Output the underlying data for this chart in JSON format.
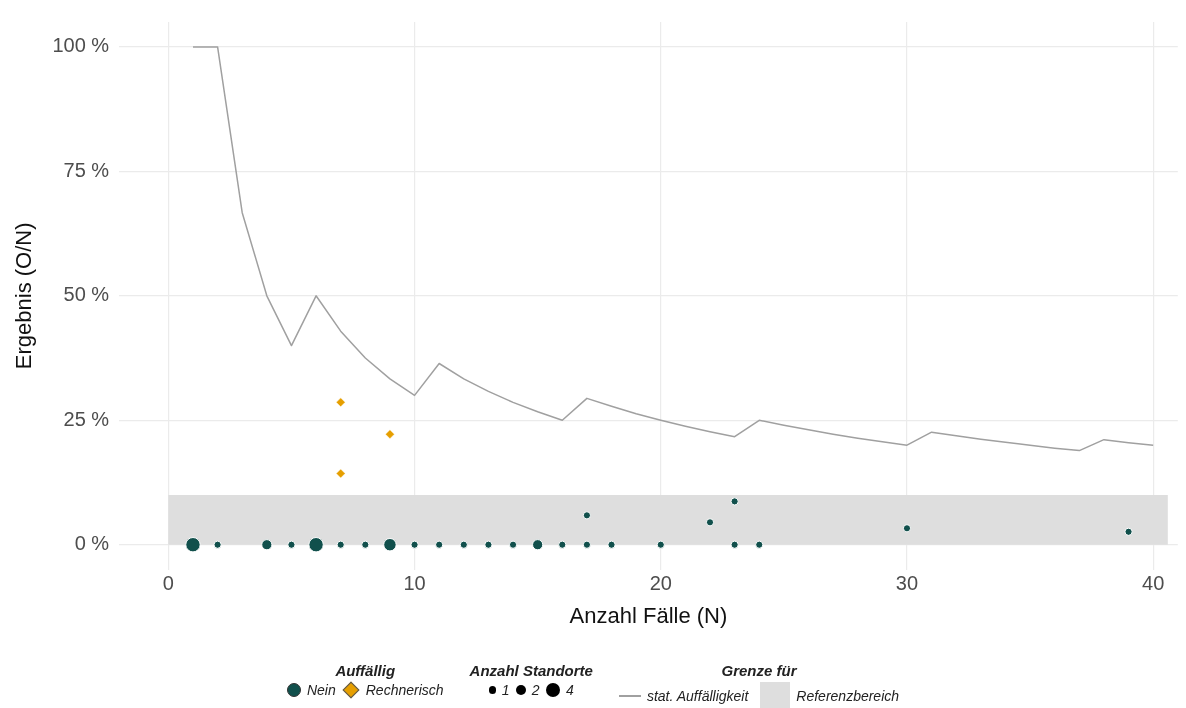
{
  "chart_data": {
    "type": "scatter",
    "xlabel": "Anzahl Fälle (N)",
    "ylabel": "Ergebnis (O/N)",
    "legend_title": "Auffällig",
    "annotations": [
      "Anzahl Standorte",
      "Grenze für"
    ],
    "xlim": [
      -2,
      41
    ],
    "xticks": [
      0,
      10,
      20,
      30,
      40
    ],
    "ylim": [
      -5,
      105
    ],
    "yticks": [
      {
        "value": 0,
        "label": "0 %"
      },
      {
        "value": 25,
        "label": "25 %"
      },
      {
        "value": 50,
        "label": "50 %"
      },
      {
        "value": 75,
        "label": "75 %"
      },
      {
        "value": 100,
        "label": "100 %"
      }
    ],
    "grid": true,
    "legend": "bottom",
    "size_legend": [
      1,
      2,
      4
    ],
    "bands": [
      {
        "axis": "y",
        "from": 0,
        "to": 10,
        "label": "Referenzbereich",
        "color": "#dedede"
      }
    ],
    "series": [
      {
        "name": "stat. Auffälligkeit",
        "type": "line",
        "color": "#a0a0a0",
        "marker": "none",
        "line_style": "solid",
        "x": [
          1,
          2,
          3,
          4,
          5,
          6,
          7,
          8,
          9,
          10,
          11,
          12,
          13,
          14,
          15,
          16,
          17,
          18,
          19,
          20,
          21,
          22,
          23,
          24,
          25,
          26,
          27,
          28,
          29,
          30,
          31,
          32,
          33,
          34,
          35,
          36,
          37,
          38,
          39,
          40
        ],
        "values": [
          100,
          100,
          66.7,
          50,
          40,
          50,
          42.9,
          37.5,
          33.3,
          30,
          36.4,
          33.3,
          30.8,
          28.6,
          26.7,
          25,
          29.4,
          27.8,
          26.3,
          25,
          23.8,
          22.7,
          21.7,
          25,
          24,
          23.1,
          22.2,
          21.4,
          20.7,
          20,
          22.6,
          21.9,
          21.2,
          20.6,
          20,
          19.4,
          18.9,
          21.1,
          20.5,
          20
        ]
      },
      {
        "name": "Nein",
        "type": "bubble",
        "color": "#11504c",
        "marker": "circle",
        "x": [
          1,
          2,
          4,
          5,
          6,
          7,
          8,
          9,
          10,
          11,
          12,
          13,
          14,
          15,
          16,
          17,
          18,
          20,
          23,
          24,
          17,
          22,
          23,
          30,
          39
        ],
        "values": [
          0,
          0,
          0,
          0,
          0,
          0,
          0,
          0,
          0,
          0,
          0,
          0,
          0,
          0,
          0,
          0,
          0,
          0,
          0,
          0,
          5.9,
          4.5,
          8.7,
          3.3,
          2.6
        ],
        "sizes": [
          4,
          1,
          2,
          1,
          4,
          1,
          1,
          3,
          1,
          1,
          1,
          1,
          1,
          2,
          1,
          1,
          1,
          1,
          1,
          1,
          1,
          1,
          1,
          1,
          1
        ]
      },
      {
        "name": "Rechnerisch",
        "color": "#e69f00",
        "marker": "diamond",
        "x": [
          7,
          7,
          9
        ],
        "values": [
          28.6,
          14.3,
          22.2
        ]
      }
    ]
  }
}
